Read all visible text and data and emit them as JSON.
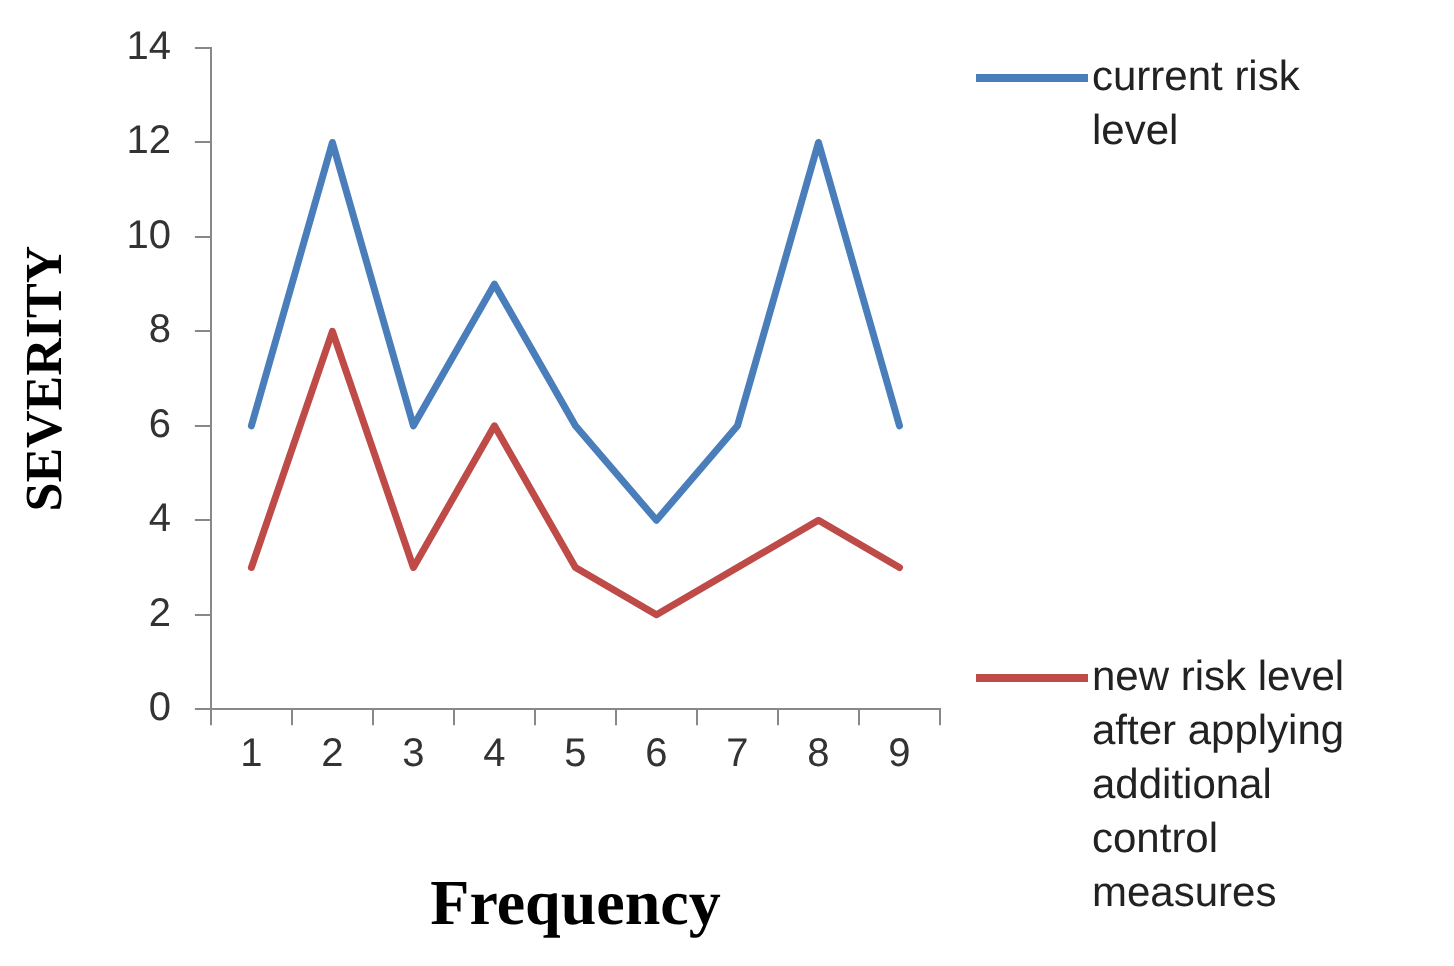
{
  "chart_data": {
    "type": "line",
    "xlabel": "Frequency",
    "ylabel": "SEVERITY",
    "categories": [
      "1",
      "2",
      "3",
      "4",
      "5",
      "6",
      "7",
      "8",
      "9"
    ],
    "series": [
      {
        "name": "current risk level",
        "color": "#4a7ebb",
        "values": [
          6,
          12,
          6,
          9,
          6,
          4,
          6,
          12,
          6
        ]
      },
      {
        "name": "new risk level after applying additional control measures",
        "color": "#be4b48",
        "values": [
          3,
          8,
          3,
          6,
          3,
          2,
          3,
          4,
          3
        ]
      }
    ],
    "ylim": [
      0,
      14
    ],
    "yticks": [
      0,
      2,
      4,
      6,
      8,
      10,
      12,
      14
    ],
    "grid": false,
    "legend": "right",
    "marker": "none",
    "line_style": "solid"
  }
}
